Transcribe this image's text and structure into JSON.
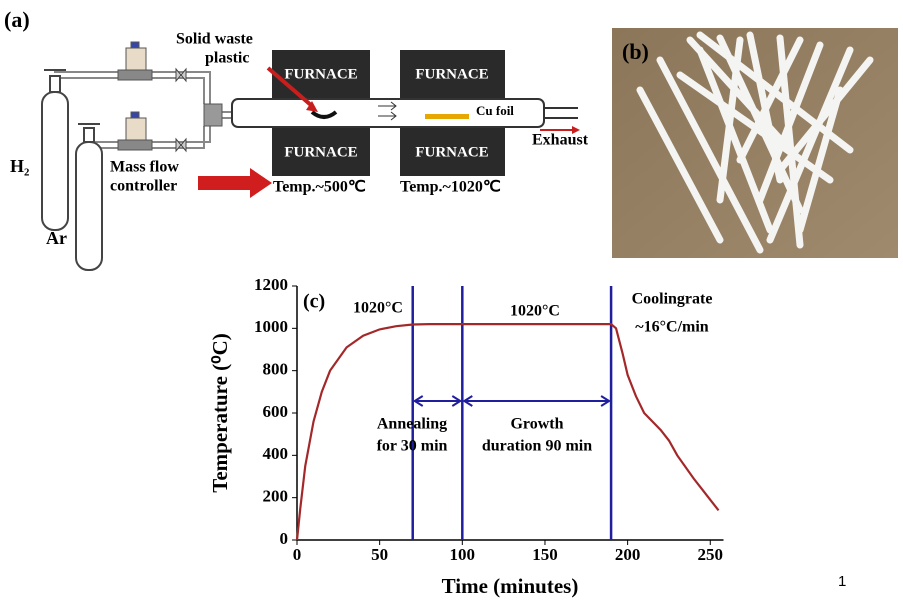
{
  "panel_a": {
    "label": "(a)",
    "plastic_label": [
      "Solid waste",
      "plastic"
    ],
    "furnaces": [
      "FURNACE",
      "FURNACE",
      "FURNACE",
      "FURNACE"
    ],
    "cu_label": "Cu foil",
    "exhaust_label": "Exhaust",
    "gas_1": "H₂",
    "gas_2": "Ar",
    "controller_label": [
      "Mass flow",
      "controller"
    ],
    "temp_1": "Temp.~500℃",
    "temp_2": "Temp.~1020℃"
  },
  "panel_b": {
    "label": "(b)"
  },
  "chart_data": {
    "type": "line",
    "label": "(c)",
    "x_label": "Time (minutes)",
    "y_label": "Temperature (⁰C)",
    "x": [
      0,
      2,
      5,
      10,
      15,
      20,
      30,
      40,
      50,
      60,
      70,
      80,
      190,
      193,
      197,
      200,
      205,
      210,
      220,
      225,
      230,
      240,
      245,
      250,
      255
    ],
    "series": [
      {
        "color": "#a3282a",
        "values": [
          0,
          150,
          350,
          560,
          700,
          800,
          910,
          965,
          995,
          1010,
          1018,
          1020,
          1020,
          1000,
          880,
          780,
          680,
          600,
          520,
          470,
          400,
          290,
          240,
          190,
          140
        ]
      }
    ],
    "vlines": [
      70,
      100,
      190
    ],
    "vline_color": "#1f1f9e",
    "annotations": [
      "1020°C",
      "1020°C",
      "Coolingrate",
      "~16°C/min",
      "Annealing",
      "for 30 min",
      "Growth",
      "duration 90 min"
    ],
    "xlim": [
      0,
      258
    ],
    "ylim": [
      0,
      1200
    ],
    "xticks": [
      0,
      50,
      100,
      150,
      200,
      250
    ],
    "yticks": [
      0,
      200,
      400,
      600,
      800,
      1000,
      1200
    ]
  },
  "page_number": "1"
}
